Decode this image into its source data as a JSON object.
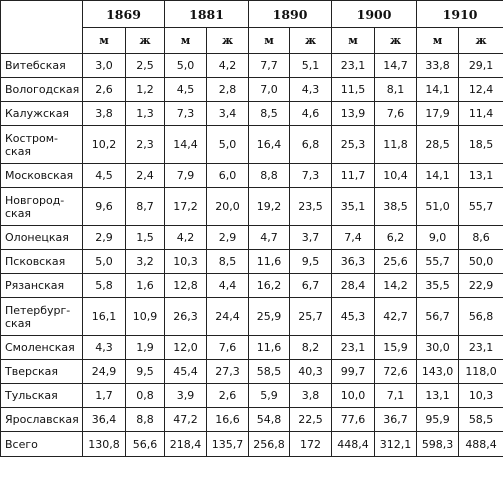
{
  "table": {
    "years": [
      "1869",
      "1881",
      "1890",
      "1900",
      "1910"
    ],
    "sex_labels": [
      "м",
      "ж"
    ],
    "rows": [
      {
        "region": "Витебская",
        "values": [
          "3,0",
          "2,5",
          "5,0",
          "4,2",
          "7,7",
          "5,1",
          "23,1",
          "14,7",
          "33,8",
          "29,1"
        ]
      },
      {
        "region": "Вологодская",
        "values": [
          "2,6",
          "1,2",
          "4,5",
          "2,8",
          "7,0",
          "4,3",
          "11,5",
          "8,1",
          "14,1",
          "12,4"
        ]
      },
      {
        "region": "Калужская",
        "values": [
          "3,8",
          "1,3",
          "7,3",
          "3,4",
          "8,5",
          "4,6",
          "13,9",
          "7,6",
          "17,9",
          "11,4"
        ]
      },
      {
        "region": "Костром-\nская",
        "values": [
          "10,2",
          "2,3",
          "14,4",
          "5,0",
          "16,4",
          "6,8",
          "25,3",
          "11,8",
          "28,5",
          "18,5"
        ]
      },
      {
        "region": "Московская",
        "values": [
          "4,5",
          "2,4",
          "7,9",
          "6,0",
          "8,8",
          "7,3",
          "11,7",
          "10,4",
          "14,1",
          "13,1"
        ]
      },
      {
        "region": "Новгород-\nская",
        "values": [
          "9,6",
          "8,7",
          "17,2",
          "20,0",
          "19,2",
          "23,5",
          "35,1",
          "38,5",
          "51,0",
          "55,7"
        ]
      },
      {
        "region": "Олонецкая",
        "values": [
          "2,9",
          "1,5",
          "4,2",
          "2,9",
          "4,7",
          "3,7",
          "7,4",
          "6,2",
          "9,0",
          "8,6"
        ]
      },
      {
        "region": "Псковская",
        "values": [
          "5,0",
          "3,2",
          "10,3",
          "8,5",
          "11,6",
          "9,5",
          "36,3",
          "25,6",
          "55,7",
          "50,0"
        ]
      },
      {
        "region": "Рязанская",
        "values": [
          "5,8",
          "1,6",
          "12,8",
          "4,4",
          "16,2",
          "6,7",
          "28,4",
          "14,2",
          "35,5",
          "22,9"
        ]
      },
      {
        "region": "Петербург-\nская",
        "values": [
          "16,1",
          "10,9",
          "26,3",
          "24,4",
          "25,9",
          "25,7",
          "45,3",
          "42,7",
          "56,7",
          "56,8"
        ]
      },
      {
        "region": "Смоленская",
        "values": [
          "4,3",
          "1,9",
          "12,0",
          "7,6",
          "11,6",
          "8,2",
          "23,1",
          "15,9",
          "30,0",
          "23,1"
        ]
      },
      {
        "region": "Тверская",
        "values": [
          "24,9",
          "9,5",
          "45,4",
          "27,3",
          "58,5",
          "40,3",
          "99,7",
          "72,6",
          "143,0",
          "118,0"
        ]
      },
      {
        "region": "Тульская",
        "values": [
          "1,7",
          "0,8",
          "3,9",
          "2,6",
          "5,9",
          "3,8",
          "10,0",
          "7,1",
          "13,1",
          "10,3"
        ]
      },
      {
        "region": "Ярославская",
        "values": [
          "36,4",
          "8,8",
          "47,2",
          "16,6",
          "54,8",
          "22,5",
          "77,6",
          "36,7",
          "95,9",
          "58,5"
        ]
      },
      {
        "region": "Всего",
        "values": [
          "130,8",
          "56,6",
          "218,4",
          "135,7",
          "256,8",
          "172",
          "448,4",
          "312,1",
          "598,3",
          "488,4"
        ]
      }
    ]
  }
}
